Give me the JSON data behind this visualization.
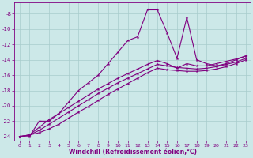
{
  "xlabel": "Windchill (Refroidissement éolien,°C)",
  "background_color": "#cce8e8",
  "grid_color": "#a8cccc",
  "line_color": "#800080",
  "xlim": [
    -0.5,
    23.5
  ],
  "ylim": [
    -24.5,
    -6.5
  ],
  "xticks": [
    0,
    1,
    2,
    3,
    4,
    5,
    6,
    7,
    8,
    9,
    10,
    11,
    12,
    13,
    14,
    15,
    16,
    17,
    18,
    19,
    20,
    21,
    22,
    23
  ],
  "yticks": [
    -24,
    -22,
    -20,
    -18,
    -16,
    -14,
    -12,
    -10,
    -8
  ],
  "series1_x": [
    0,
    1,
    2,
    3,
    4,
    5,
    6,
    7,
    8,
    9,
    10,
    11,
    12,
    13,
    14,
    15,
    16,
    17,
    18,
    19,
    20,
    21,
    22,
    23
  ],
  "series1_y": [
    -24,
    -24,
    -22,
    -22,
    -21,
    -19.5,
    -18,
    -17,
    -16,
    -14.5,
    -13,
    -11.5,
    -11,
    -7.5,
    -7.5,
    -10.5,
    -13.8,
    -8.5,
    -14,
    -14.5,
    -14.8,
    -14.5,
    -14,
    -13.5
  ],
  "series2_x": [
    0,
    1,
    2,
    3,
    4,
    5,
    6,
    7,
    8,
    9,
    10,
    11,
    12,
    13,
    14,
    15,
    16,
    17,
    18,
    19,
    20,
    21,
    22,
    23
  ],
  "series2_y": [
    -24,
    -23.8,
    -22.8,
    -21.8,
    -21.0,
    -20.2,
    -19.4,
    -18.6,
    -17.8,
    -17.1,
    -16.4,
    -15.8,
    -15.2,
    -14.6,
    -14.1,
    -14.5,
    -15.1,
    -14.5,
    -14.8,
    -14.8,
    -14.5,
    -14.2,
    -13.9,
    -13.5
  ],
  "series3_x": [
    0,
    1,
    2,
    3,
    4,
    5,
    6,
    7,
    8,
    9,
    10,
    11,
    12,
    13,
    14,
    15,
    16,
    17,
    18,
    19,
    20,
    21,
    22,
    23
  ],
  "series3_y": [
    -24,
    -23.8,
    -23.2,
    -22.4,
    -21.6,
    -20.8,
    -20.0,
    -19.2,
    -18.4,
    -17.7,
    -17.0,
    -16.4,
    -15.8,
    -15.2,
    -14.6,
    -14.8,
    -15.0,
    -15.1,
    -15.2,
    -15.1,
    -14.9,
    -14.6,
    -14.3,
    -13.8
  ],
  "series4_x": [
    0,
    1,
    2,
    3,
    4,
    5,
    6,
    7,
    8,
    9,
    10,
    11,
    12,
    13,
    14,
    15,
    16,
    17,
    18,
    19,
    20,
    21,
    22,
    23
  ],
  "series4_y": [
    -24,
    -23.8,
    -23.5,
    -23.0,
    -22.4,
    -21.6,
    -20.8,
    -20.1,
    -19.3,
    -18.5,
    -17.8,
    -17.1,
    -16.4,
    -15.7,
    -15.1,
    -15.3,
    -15.4,
    -15.5,
    -15.5,
    -15.4,
    -15.2,
    -14.9,
    -14.5,
    -14.0
  ]
}
